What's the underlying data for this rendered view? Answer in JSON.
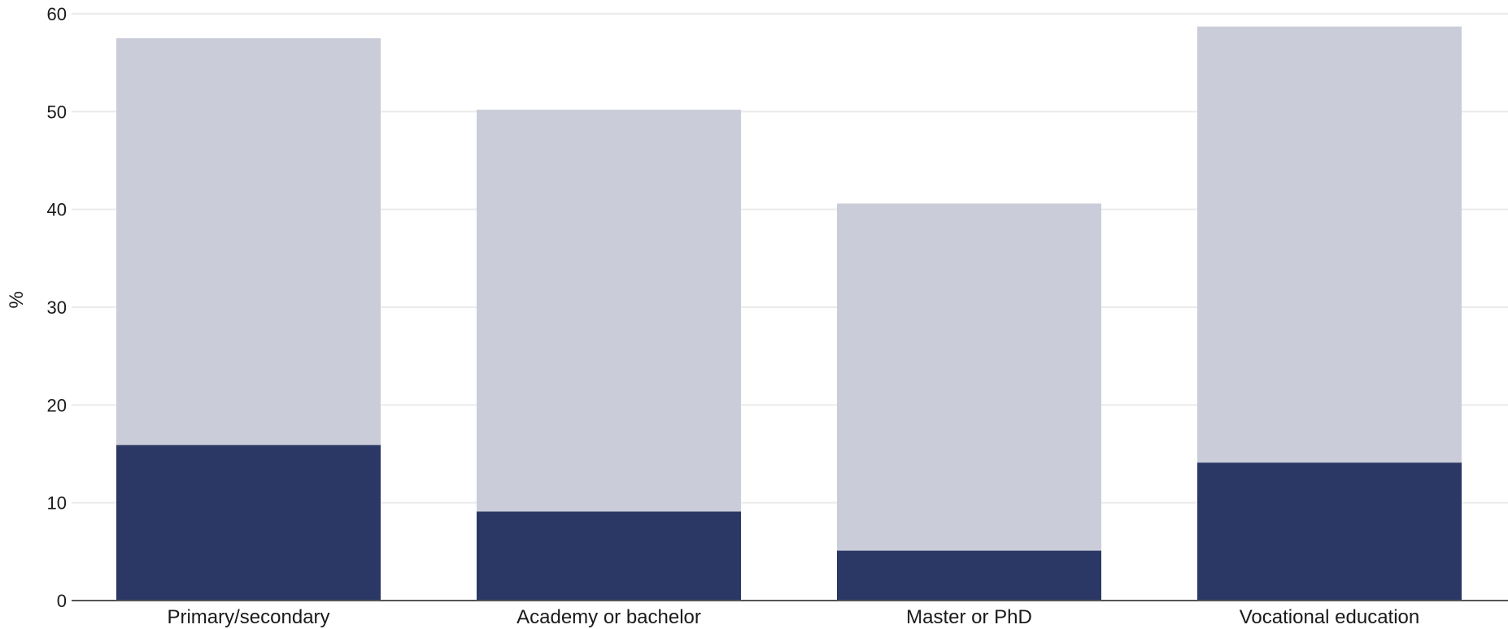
{
  "chart_data": {
    "type": "bar",
    "stacked": false,
    "overlap": true,
    "categories": [
      "Primary/secondary",
      "Academy or bachelor",
      "Master or PhD",
      "Vocational education"
    ],
    "series": [
      {
        "values": [
          57.5,
          50.2,
          40.6,
          58.7
        ],
        "color": "#cacdd9"
      },
      {
        "values": [
          15.9,
          9.1,
          5.1,
          14.1
        ],
        "color": "#2b3866"
      }
    ],
    "ylabel": "%",
    "ylim": [
      0,
      60
    ],
    "yticks": [
      0,
      10,
      20,
      30,
      40,
      50,
      60
    ],
    "grid": true,
    "grid_color": "#ebebeb",
    "axis_color": "#555555"
  }
}
